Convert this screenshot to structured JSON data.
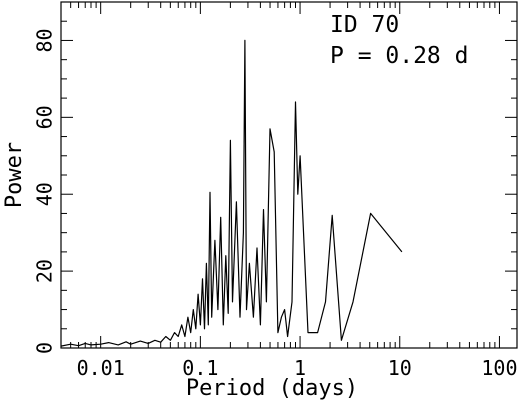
{
  "chart_data": {
    "type": "line",
    "xlabel": "Period (days)",
    "ylabel": "Power",
    "xscale": "log",
    "xlim": [
      0.004,
      150
    ],
    "ylim": [
      0,
      90
    ],
    "x_ticks": [
      0.01,
      0.1,
      1,
      10,
      100
    ],
    "x_tick_labels": [
      "0.01",
      "0.1",
      "1",
      "10",
      "100"
    ],
    "y_ticks": [
      0,
      20,
      40,
      60,
      80
    ],
    "y_tick_labels": [
      "0",
      "20",
      "40",
      "60",
      "80"
    ],
    "grid": false,
    "annotations": [
      "ID 70",
      "P = 0.28 d"
    ],
    "series": [
      {
        "color": "#000000",
        "points": [
          [
            0.004,
            0.5
          ],
          [
            0.005,
            1.0
          ],
          [
            0.006,
            0.6
          ],
          [
            0.007,
            1.2
          ],
          [
            0.008,
            0.8
          ],
          [
            0.01,
            1.0
          ],
          [
            0.012,
            1.4
          ],
          [
            0.015,
            0.8
          ],
          [
            0.018,
            1.6
          ],
          [
            0.02,
            1.0
          ],
          [
            0.025,
            1.8
          ],
          [
            0.03,
            1.2
          ],
          [
            0.035,
            2.0
          ],
          [
            0.04,
            1.5
          ],
          [
            0.045,
            3.0
          ],
          [
            0.05,
            2.0
          ],
          [
            0.055,
            4.0
          ],
          [
            0.06,
            3.0
          ],
          [
            0.065,
            6.0
          ],
          [
            0.07,
            3.0
          ],
          [
            0.075,
            8.0
          ],
          [
            0.08,
            4.0
          ],
          [
            0.085,
            10.0
          ],
          [
            0.09,
            5.0
          ],
          [
            0.095,
            14.0
          ],
          [
            0.1,
            6.0
          ],
          [
            0.105,
            18.0
          ],
          [
            0.11,
            5.0
          ],
          [
            0.115,
            22.0
          ],
          [
            0.12,
            6.0
          ],
          [
            0.125,
            40.5
          ],
          [
            0.13,
            8.0
          ],
          [
            0.14,
            28.0
          ],
          [
            0.15,
            10.0
          ],
          [
            0.16,
            34.0
          ],
          [
            0.17,
            6.0
          ],
          [
            0.18,
            24.0
          ],
          [
            0.19,
            9.0
          ],
          [
            0.2,
            54.0
          ],
          [
            0.21,
            12.0
          ],
          [
            0.23,
            38.0
          ],
          [
            0.25,
            8.0
          ],
          [
            0.27,
            30.0
          ],
          [
            0.28,
            80.0
          ],
          [
            0.29,
            10.0
          ],
          [
            0.31,
            22.0
          ],
          [
            0.34,
            8.0
          ],
          [
            0.37,
            26.0
          ],
          [
            0.4,
            6.0
          ],
          [
            0.43,
            36.0
          ],
          [
            0.46,
            12.0
          ],
          [
            0.5,
            57.0
          ],
          [
            0.55,
            51.0
          ],
          [
            0.6,
            4.0
          ],
          [
            0.65,
            8.0
          ],
          [
            0.7,
            10.0
          ],
          [
            0.75,
            3.0
          ],
          [
            0.83,
            12.0
          ],
          [
            0.9,
            64.0
          ],
          [
            0.95,
            40.0
          ],
          [
            1.0,
            50.0
          ],
          [
            1.2,
            4.0
          ],
          [
            1.5,
            4.0
          ],
          [
            1.8,
            12.0
          ],
          [
            2.1,
            34.5
          ],
          [
            2.6,
            2.0
          ],
          [
            3.4,
            12.0
          ],
          [
            5.1,
            35.0
          ],
          [
            10.5,
            25.0
          ]
        ]
      }
    ]
  }
}
